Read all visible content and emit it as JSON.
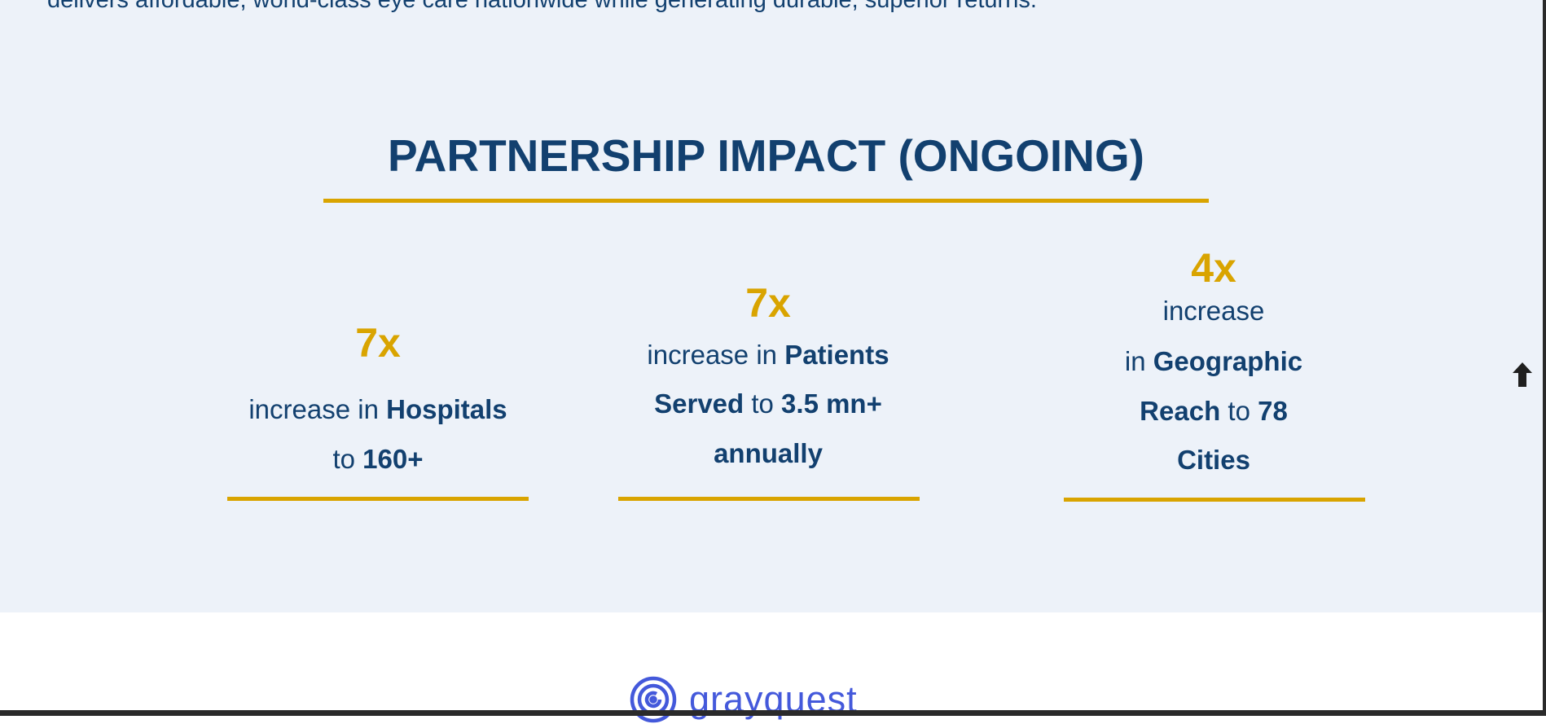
{
  "intro_text": "delivers affordable, world-class eye care nationwide while generating durable, superior returns.",
  "section": {
    "title": "PARTNERSHIP IMPACT (ONGOING)",
    "stats": [
      {
        "value": "7x",
        "lines": [
          [
            {
              "t": "increase in "
            },
            {
              "t": "Hospitals"
            }
          ],
          [
            {
              "t": "to "
            },
            {
              "t": "160+"
            }
          ]
        ]
      },
      {
        "value": "7x",
        "lines": [
          [
            {
              "t": "increase in "
            },
            {
              "t": "Patients"
            }
          ],
          [
            {
              "t": "Served"
            },
            {
              "t": " to "
            },
            {
              "t": "3.5 mn+"
            }
          ],
          [
            {
              "t": "annually"
            }
          ]
        ]
      },
      {
        "value": "4x",
        "lines": [
          [
            {
              "t": "increase"
            }
          ],
          [
            {
              "t": "in "
            },
            {
              "t": "Geographic"
            }
          ],
          [
            {
              "t": "Reach"
            },
            {
              "t": " to "
            },
            {
              "t": "78"
            }
          ],
          [
            {
              "t": "Cities"
            }
          ]
        ]
      }
    ]
  },
  "footer": {
    "logo_text": "grayquest"
  },
  "colors": {
    "navy": "#12406f",
    "gold": "#d9a400",
    "band_bg": "#edf2f9",
    "logo_blue": "#4459db"
  },
  "icons": {
    "scroll_top": "arrow-up-icon",
    "logo": "concentric-circles-icon"
  }
}
